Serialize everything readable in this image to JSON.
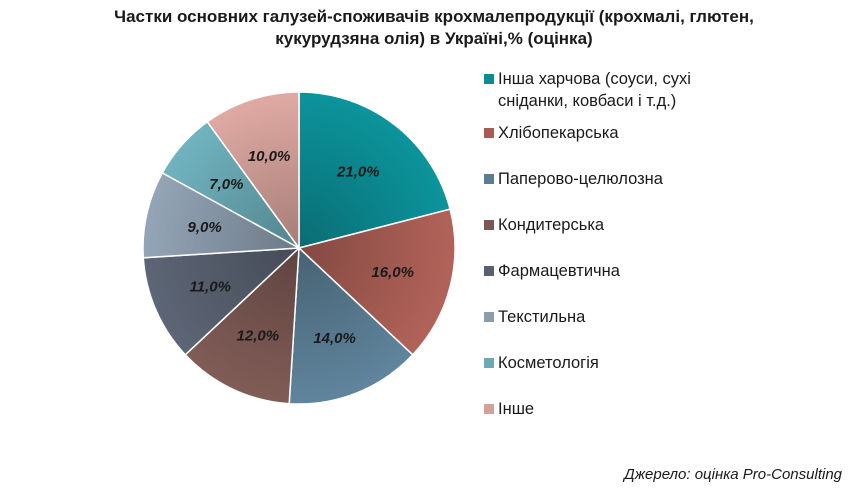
{
  "title_lines": [
    "Частки основних галузей-споживачів крохмалепродукції (крохмалі, глютен,",
    "кукурудзяна олія) в Україні,% (оцінка)"
  ],
  "source": "Джерело: оцінка Pro-Consulting",
  "chart_data": {
    "type": "pie",
    "title": "Частки основних галузей-споживачів крохмалепродукції (крохмалі, глютен, кукурудзяна олія) в Україні,% (оцінка)",
    "legend_position": "right",
    "unit": "%",
    "slices": [
      {
        "label_lines": [
          "Інша харчова (соуси, сухі",
          "сніданки, ковбаси і т.д.)"
        ],
        "value": 21.0,
        "value_label": "21,0%",
        "color": "#0b8c93"
      },
      {
        "label_lines": [
          "Хлібопекарська"
        ],
        "value": 16.0,
        "value_label": "16,0%",
        "color": "#a85d54"
      },
      {
        "label_lines": [
          "Паперово-целюлозна"
        ],
        "value": 14.0,
        "value_label": "14,0%",
        "color": "#5b7d94"
      },
      {
        "label_lines": [
          "Кондитерська"
        ],
        "value": 12.0,
        "value_label": "12,0%",
        "color": "#7a5752"
      },
      {
        "label_lines": [
          "Фармацевтична"
        ],
        "value": 11.0,
        "value_label": "11,0%",
        "color": "#58606f"
      },
      {
        "label_lines": [
          "Текстильна"
        ],
        "value": 9.0,
        "value_label": "9,0%",
        "color": "#8c9cad"
      },
      {
        "label_lines": [
          "Косметологія"
        ],
        "value": 7.0,
        "value_label": "7,0%",
        "color": "#6aaab5"
      },
      {
        "label_lines": [
          "Інше"
        ],
        "value": 10.0,
        "value_label": "10,0%",
        "color": "#d3a09a"
      }
    ]
  }
}
